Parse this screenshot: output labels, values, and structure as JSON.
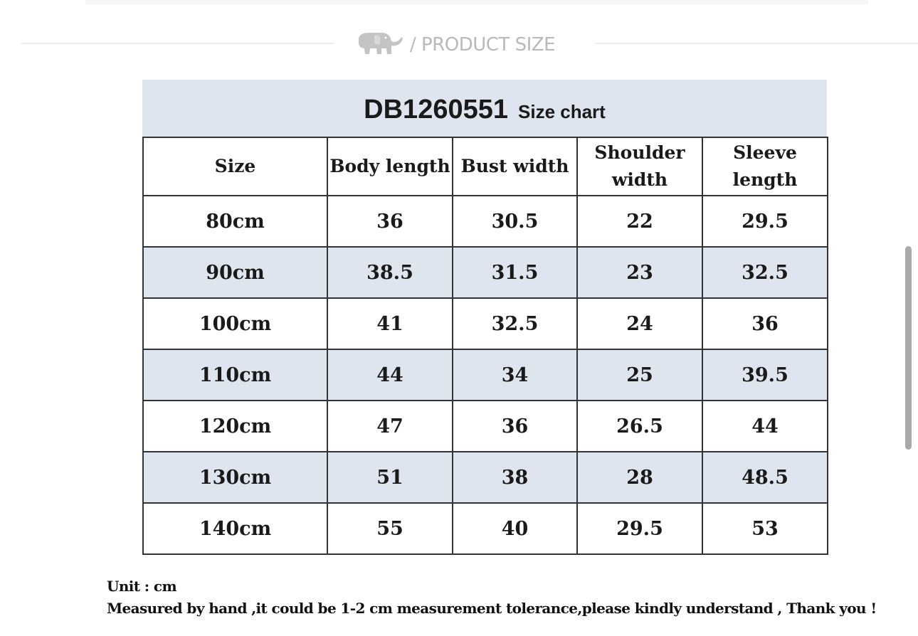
{
  "section_header": {
    "icon": "elephant-icon",
    "title": "/ PRODUCT SIZE"
  },
  "size_chart": {
    "product_code": "DB1260551",
    "title_suffix": "Size chart",
    "columns": [
      "Size",
      "Body length",
      "Bust width",
      "Shoulder width",
      "Sleeve length"
    ],
    "rows": [
      [
        "80cm",
        "36",
        "30.5",
        "22",
        "29.5"
      ],
      [
        "90cm",
        "38.5",
        "31.5",
        "23",
        "32.5"
      ],
      [
        "100cm",
        "41",
        "32.5",
        "24",
        "36"
      ],
      [
        "110cm",
        "44",
        "34",
        "25",
        "39.5"
      ],
      [
        "120cm",
        "47",
        "36",
        "26.5",
        "44"
      ],
      [
        "130cm",
        "51",
        "38",
        "28",
        "48.5"
      ],
      [
        "140cm",
        "55",
        "40",
        "29.5",
        "53"
      ]
    ]
  },
  "notes": {
    "unit": "Unit : cm",
    "tolerance": "Measured by hand ,it could be 1-2 cm measurement tolerance,please kindly understand , Thank you !"
  },
  "colors": {
    "band": "#dfe5ee",
    "border": "#333333",
    "header_text": "#b9b9b9"
  }
}
